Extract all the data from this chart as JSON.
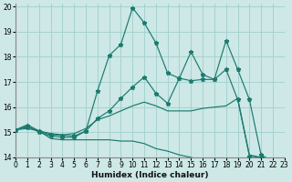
{
  "xlabel": "Humidex (Indice chaleur)",
  "xlim": [
    0,
    23
  ],
  "ylim": [
    14,
    20.1
  ],
  "yticks": [
    14,
    15,
    16,
    17,
    18,
    19,
    20
  ],
  "xticks": [
    0,
    1,
    2,
    3,
    4,
    5,
    6,
    7,
    8,
    9,
    10,
    11,
    12,
    13,
    14,
    15,
    16,
    17,
    18,
    19,
    20,
    21,
    22,
    23
  ],
  "bg_color": "#cde8e6",
  "grid_color": "#9fcfcc",
  "line_color": "#1a7a6e",
  "line1_y": [
    15.1,
    15.3,
    15.05,
    14.75,
    14.7,
    14.7,
    14.7,
    14.7,
    14.7,
    14.65,
    14.65,
    14.55,
    14.35,
    14.25,
    14.1,
    14.0,
    13.9,
    13.85,
    13.8,
    13.75,
    13.75,
    13.8,
    13.8,
    13.8
  ],
  "line2_y": [
    15.1,
    15.15,
    15.05,
    14.95,
    14.9,
    14.95,
    15.15,
    15.5,
    15.65,
    15.85,
    16.05,
    16.2,
    16.05,
    15.85,
    15.85,
    15.85,
    15.95,
    16.0,
    16.05,
    16.35,
    14.1,
    14.0,
    13.85,
    13.8
  ],
  "line3_y": [
    15.1,
    15.2,
    15.05,
    14.9,
    14.88,
    14.85,
    15.05,
    15.55,
    15.85,
    16.35,
    16.8,
    17.2,
    16.55,
    16.15,
    17.15,
    17.05,
    17.1,
    17.1,
    17.5,
    16.3,
    14.05,
    14.0,
    13.85,
    13.8
  ],
  "line3_marker_x": [
    0,
    1,
    2,
    3,
    4,
    5,
    6,
    7,
    8,
    9,
    10,
    11,
    12,
    13,
    14,
    15,
    16,
    17,
    18,
    19,
    20,
    21,
    22,
    23
  ],
  "line4_y": [
    15.1,
    15.25,
    15.0,
    14.85,
    14.8,
    14.8,
    15.05,
    16.65,
    18.05,
    18.5,
    19.95,
    19.35,
    18.55,
    17.35,
    17.15,
    18.2,
    17.3,
    17.1,
    18.65,
    17.5,
    16.3,
    14.1,
    13.85,
    13.8
  ],
  "line4_marker_x": [
    0,
    2,
    3,
    4,
    6,
    7,
    8,
    9,
    10,
    11,
    12,
    13,
    15,
    16,
    17,
    18,
    19,
    20,
    21,
    22,
    23
  ],
  "marker": "*",
  "markersize": 3.5,
  "linewidth": 0.85,
  "tick_fontsize": 5.5,
  "xlabel_fontsize": 6.5
}
